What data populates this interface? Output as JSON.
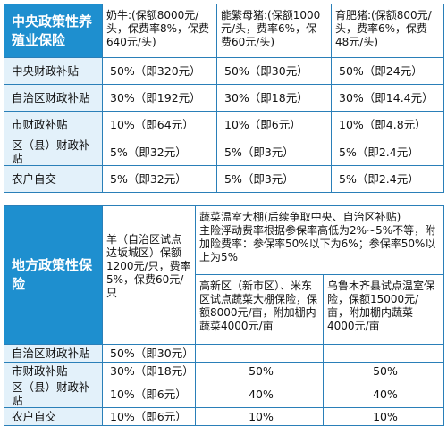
{
  "table1": {
    "header_title": "中央政策性养殖业保险",
    "columns": [
      "奶牛:(保额8000元/头，保费率8%，保费640元/头)",
      "能繁母猪:(保额1000元/头，费率6%，保费60元/头)",
      "育肥猪:(保额800元/头，费率6%，保费48元/头)"
    ],
    "rows": [
      {
        "label": "中央财政补贴",
        "values": [
          "50%（即320元）",
          "50%（即30元）",
          "50%（即24元）"
        ]
      },
      {
        "label": "自治区财政补贴",
        "values": [
          "30%（即192元）",
          "30%（即18元）",
          "30%（即14.4元）"
        ]
      },
      {
        "label": "市财政补贴",
        "values": [
          "10%（即64元）",
          "10%（即6元）",
          "10%（即4.8元）"
        ]
      },
      {
        "label": "区（县）财政补贴",
        "values": [
          "5%（即32元）",
          "5%（即3元）",
          "5%（即2.4元）"
        ]
      },
      {
        "label": "农户自交",
        "values": [
          "5%（即32元）",
          "5%（即3元）",
          "5%（即2.4元）"
        ]
      }
    ]
  },
  "table2": {
    "header_title": "地方政策性保险",
    "sheep_column": "羊（自治区试点达坂城区）保额1200元/只，费率5%，保费60元/只",
    "veg_group": "蔬菜温室大棚(后续争取中央、自治区补贴)\n主险浮动费率根据参保率高低为2%~5%不等，附加险费率：参保率50%以下为6%；参保率50%以上为5%",
    "veg_sub1": "高新区（新市区）、米东区试点蔬菜大棚保险，保额8000元/亩，附加棚内蔬菜4000元/亩",
    "veg_sub2": "乌鲁木齐县试点温室保险，保额15000元/亩，附加棚内蔬菜4000元/亩",
    "rows": [
      {
        "label": "自治区财政补贴",
        "values": [
          "50%（即30元）",
          "",
          ""
        ]
      },
      {
        "label": "市财政补贴",
        "values": [
          "30%（即18元）",
          "50%",
          "50%"
        ]
      },
      {
        "label": "区（县）财政补贴",
        "values": [
          "10%（即6元）",
          "40%",
          "40%"
        ]
      },
      {
        "label": "农户自交",
        "values": [
          "10%（即6元）",
          "10%",
          "10%"
        ]
      }
    ]
  }
}
